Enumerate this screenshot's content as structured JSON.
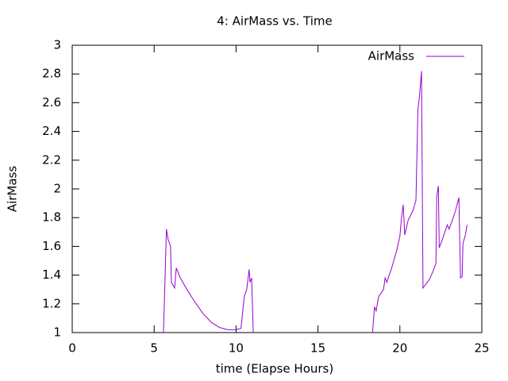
{
  "chart_data": {
    "type": "line",
    "title": "4: AirMass vs. Time",
    "x_label": "time (Elapse Hours)",
    "y_label": "AirMass",
    "xlim": [
      0,
      25
    ],
    "xticks": [
      0,
      5,
      10,
      15,
      20,
      25
    ],
    "ylim": [
      1,
      3
    ],
    "yticks": [
      1,
      1.2,
      1.4,
      1.6,
      1.8,
      2,
      2.2,
      2.4,
      2.6,
      2.8,
      3
    ],
    "legend": "top-right",
    "x": [
      5.57,
      5.75,
      5.85,
      6.0,
      6.05,
      6.25,
      6.35,
      6.6,
      7.0,
      7.5,
      8.0,
      8.5,
      9.0,
      9.5,
      10.0,
      10.3,
      10.5,
      10.65,
      10.8,
      10.85,
      10.95,
      11.05,
      15,
      18.33,
      18.45,
      18.55,
      18.7,
      19.0,
      19.1,
      19.2,
      19.5,
      19.8,
      20.0,
      20.1,
      20.2,
      20.3,
      20.5,
      20.8,
      20.98,
      21.1,
      21.2,
      21.32,
      21.41,
      21.8,
      22.0,
      22.2,
      22.25,
      22.35,
      22.4,
      22.6,
      22.8,
      22.9,
      23.0,
      23.2,
      23.4,
      23.6,
      23.7,
      23.8,
      23.85,
      24.0,
      24.1
    ],
    "series": [
      {
        "name": "AirMass",
        "color": "#9400d3",
        "values": [
          1.0,
          1.72,
          1.65,
          1.6,
          1.35,
          1.31,
          1.45,
          1.38,
          1.3,
          1.21,
          1.13,
          1.07,
          1.035,
          1.02,
          1.02,
          1.03,
          1.25,
          1.3,
          1.44,
          1.35,
          1.38,
          1.0,
          null,
          1.0,
          1.18,
          1.15,
          1.25,
          1.3,
          1.38,
          1.35,
          1.45,
          1.57,
          1.67,
          1.8,
          1.89,
          1.68,
          1.78,
          1.85,
          1.92,
          2.55,
          2.65,
          2.82,
          1.31,
          1.37,
          1.42,
          1.48,
          1.95,
          2.02,
          1.59,
          1.65,
          1.72,
          1.75,
          1.72,
          1.78,
          1.85,
          1.94,
          1.38,
          1.39,
          1.62,
          1.68,
          1.75
        ]
      }
    ]
  }
}
